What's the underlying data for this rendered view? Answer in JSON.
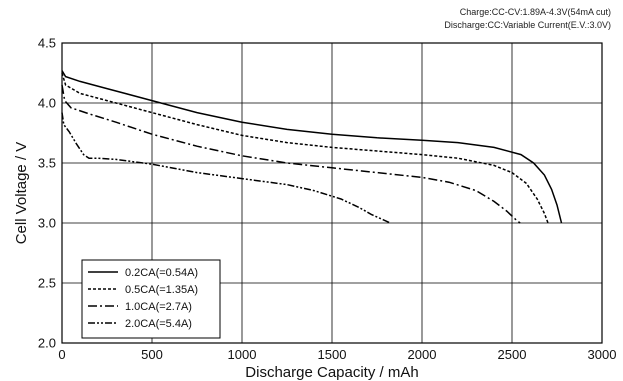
{
  "notes": [
    "Charge:CC-CV:1.89A-4.3V(54mA cut)",
    "Discharge:CC:Variable Current(E.V.:3.0V)"
  ],
  "chart_data": {
    "type": "line",
    "xlabel": "Discharge  Capacity  /  mAh",
    "ylabel": "Cell Voltage  /  V",
    "xlim": [
      0,
      3000
    ],
    "ylim": [
      2.0,
      4.5
    ],
    "xticks": [
      0,
      500,
      1000,
      1500,
      2000,
      2500,
      3000
    ],
    "yticks": [
      2.0,
      2.5,
      3.0,
      3.5,
      4.0,
      4.5
    ],
    "xtick_labels": [
      "0",
      "500",
      "1000",
      "1500",
      "2000",
      "2500",
      "3000"
    ],
    "ytick_labels": [
      "2.0",
      "2.5",
      "3.0",
      "3.5",
      "4.0",
      "4.5"
    ],
    "grid": true,
    "legend_position": "bottom-left",
    "series": [
      {
        "name": "0.2CA(=0.54A)",
        "dash": "solid",
        "x": [
          0,
          20,
          100,
          250,
          500,
          750,
          1000,
          1250,
          1500,
          1750,
          2000,
          2200,
          2400,
          2550,
          2620,
          2680,
          2720,
          2750,
          2775
        ],
        "y": [
          4.27,
          4.22,
          4.18,
          4.12,
          4.02,
          3.92,
          3.84,
          3.78,
          3.74,
          3.71,
          3.69,
          3.67,
          3.63,
          3.57,
          3.5,
          3.4,
          3.28,
          3.15,
          3.0
        ]
      },
      {
        "name": "0.5CA(=1.35A)",
        "dash": "dashed",
        "x": [
          0,
          20,
          100,
          250,
          500,
          750,
          1000,
          1250,
          1500,
          1750,
          2000,
          2200,
          2400,
          2500,
          2580,
          2640,
          2680,
          2700
        ],
        "y": [
          4.25,
          4.15,
          4.08,
          4.02,
          3.92,
          3.82,
          3.73,
          3.67,
          3.63,
          3.6,
          3.57,
          3.54,
          3.48,
          3.42,
          3.33,
          3.2,
          3.08,
          3.0
        ]
      },
      {
        "name": "1.0CA(=2.7A)",
        "dash": "dash-dot",
        "x": [
          0,
          15,
          50,
          150,
          300,
          500,
          750,
          1000,
          1250,
          1500,
          1750,
          2000,
          2150,
          2300,
          2400,
          2470,
          2520,
          2545
        ],
        "y": [
          4.15,
          4.02,
          3.96,
          3.91,
          3.84,
          3.74,
          3.64,
          3.56,
          3.5,
          3.46,
          3.42,
          3.38,
          3.34,
          3.27,
          3.18,
          3.1,
          3.03,
          3.0
        ]
      },
      {
        "name": "2.0CA(=5.4A)",
        "dash": "dash-dot-dot",
        "x": [
          0,
          10,
          40,
          80,
          120,
          150,
          200,
          300,
          500,
          750,
          1000,
          1250,
          1400,
          1550,
          1650,
          1720,
          1780,
          1825
        ],
        "y": [
          3.92,
          3.82,
          3.76,
          3.66,
          3.57,
          3.54,
          3.54,
          3.53,
          3.49,
          3.42,
          3.37,
          3.32,
          3.27,
          3.2,
          3.13,
          3.07,
          3.03,
          3.0
        ]
      }
    ]
  }
}
